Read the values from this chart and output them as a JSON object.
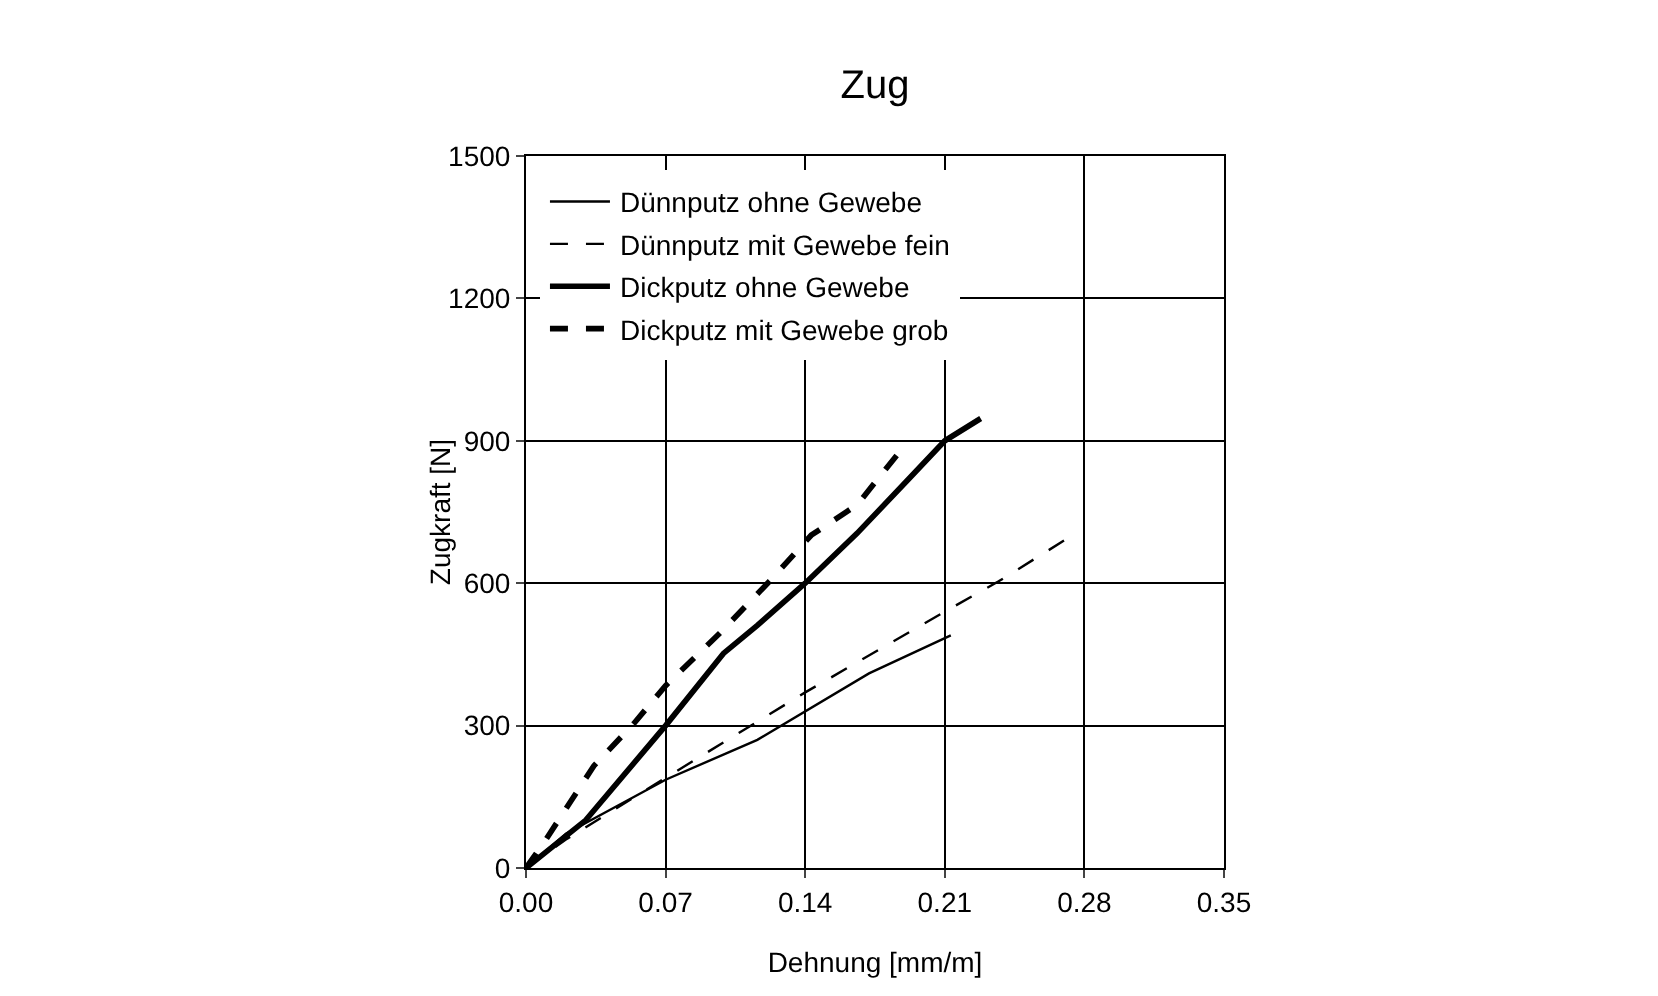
{
  "chart_data": {
    "type": "line",
    "title": "Zug",
    "xlabel": "Dehnung [mm/m]",
    "ylabel": "Zugkraft [N]",
    "xlim": [
      0,
      0.35
    ],
    "xticks": [
      {
        "value": 0,
        "label": "0.00"
      },
      {
        "value": 0.07,
        "label": "0.07"
      },
      {
        "value": 0.14,
        "label": "0.14"
      },
      {
        "value": 0.21,
        "label": "0.21"
      },
      {
        "value": 0.28,
        "label": "0.28"
      },
      {
        "value": 0.35,
        "label": "0.35"
      }
    ],
    "ylim": [
      0,
      1500
    ],
    "yticks": [
      0,
      300,
      600,
      900,
      1200,
      1500
    ],
    "grid": true,
    "legend": "top left",
    "marker": "none",
    "series": [
      {
        "name": "Dünnputz ohne Gewebe",
        "color": "#000000",
        "line_style": "solid",
        "x": [
          0,
          0.02,
          0.07,
          0.116,
          0.172,
          0.213
        ],
        "values": [
          0,
          72,
          186,
          270,
          410,
          490
        ]
      },
      {
        "name": "Dünnputz mit Gewebe fein",
        "color": "#000000",
        "line_style": "dashed",
        "x": [
          0,
          0.02,
          0.07,
          0.14,
          0.21,
          0.237,
          0.271
        ],
        "values": [
          0,
          60,
          190,
          370,
          540,
          604,
          693
        ]
      },
      {
        "name": "Dickputz ohne Gewebe",
        "color": "#000000",
        "line_style": "solid",
        "x": [
          0,
          0.03,
          0.07,
          0.099,
          0.116,
          0.14,
          0.166,
          0.192,
          0.21,
          0.228
        ],
        "values": [
          0,
          101,
          300,
          452,
          511,
          600,
          705,
          820,
          900,
          947
        ]
      },
      {
        "name": "Dickputz mit Gewebe grob",
        "color": "#000000",
        "line_style": "dashed",
        "x": [
          0,
          0.01,
          0.034,
          0.054,
          0.07,
          0.097,
          0.123,
          0.143,
          0.166,
          0.187
        ],
        "values": [
          0,
          60,
          215,
          304,
          384,
          494,
          608,
          701,
          765,
          875
        ]
      }
    ]
  }
}
